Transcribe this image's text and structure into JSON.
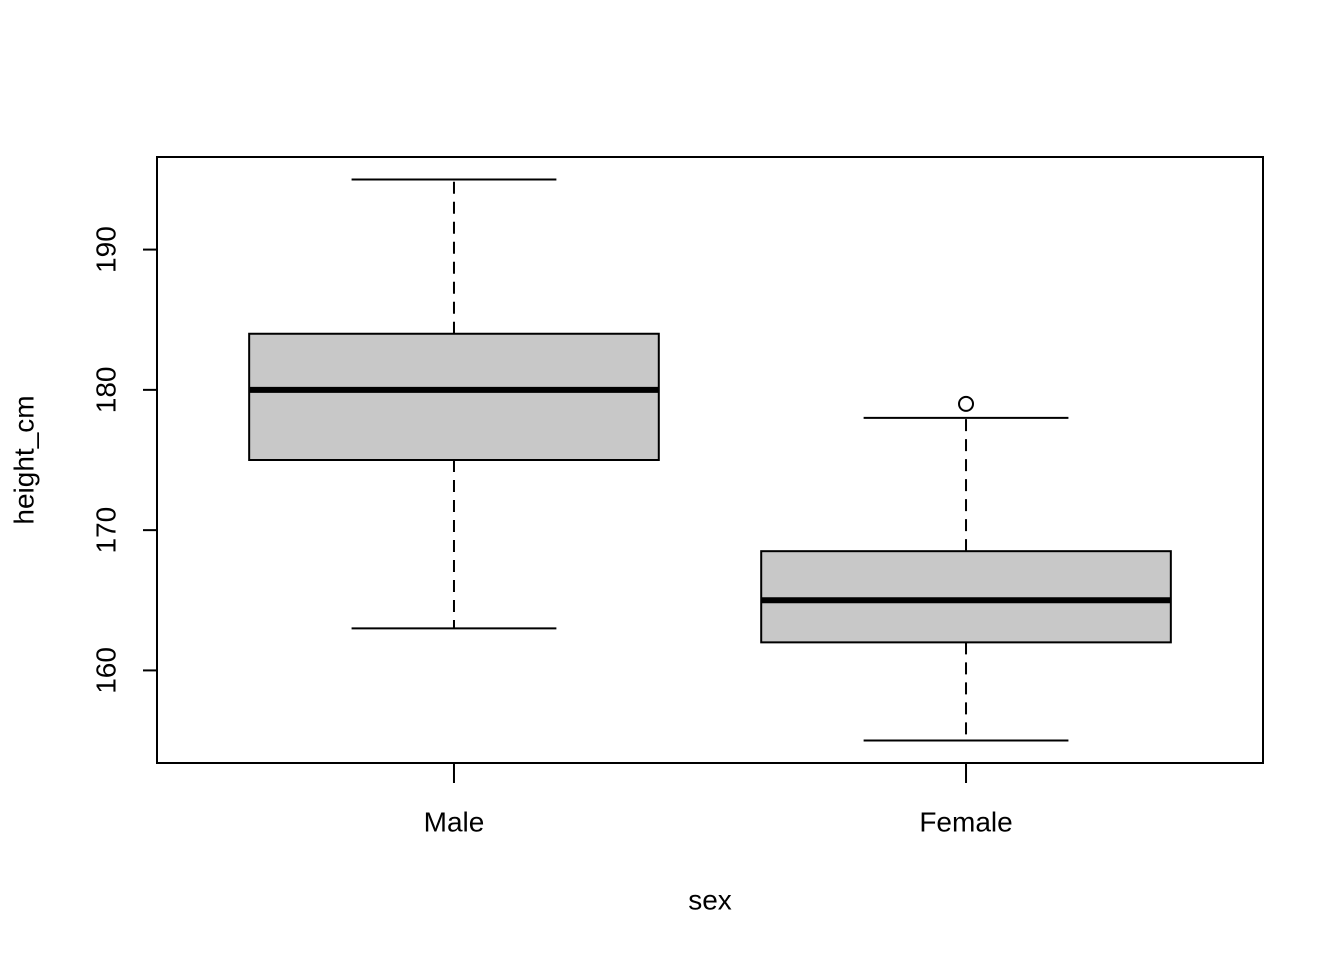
{
  "chart_data": {
    "type": "box",
    "x_label": "sex",
    "y_label": "height_cm",
    "categories": [
      "Male",
      "Female"
    ],
    "boxes": [
      {
        "min": 163,
        "q1": 175,
        "median": 180,
        "q3": 184,
        "max": 195,
        "outliers": []
      },
      {
        "min": 155,
        "q1": 162,
        "median": 165,
        "q3": 168.5,
        "max": 178,
        "outliers": [
          179
        ]
      }
    ],
    "color": "#c8c8c8",
    "ylim": [
      153.4,
      196.6
    ],
    "yticks": [
      160,
      170,
      180,
      190
    ]
  }
}
